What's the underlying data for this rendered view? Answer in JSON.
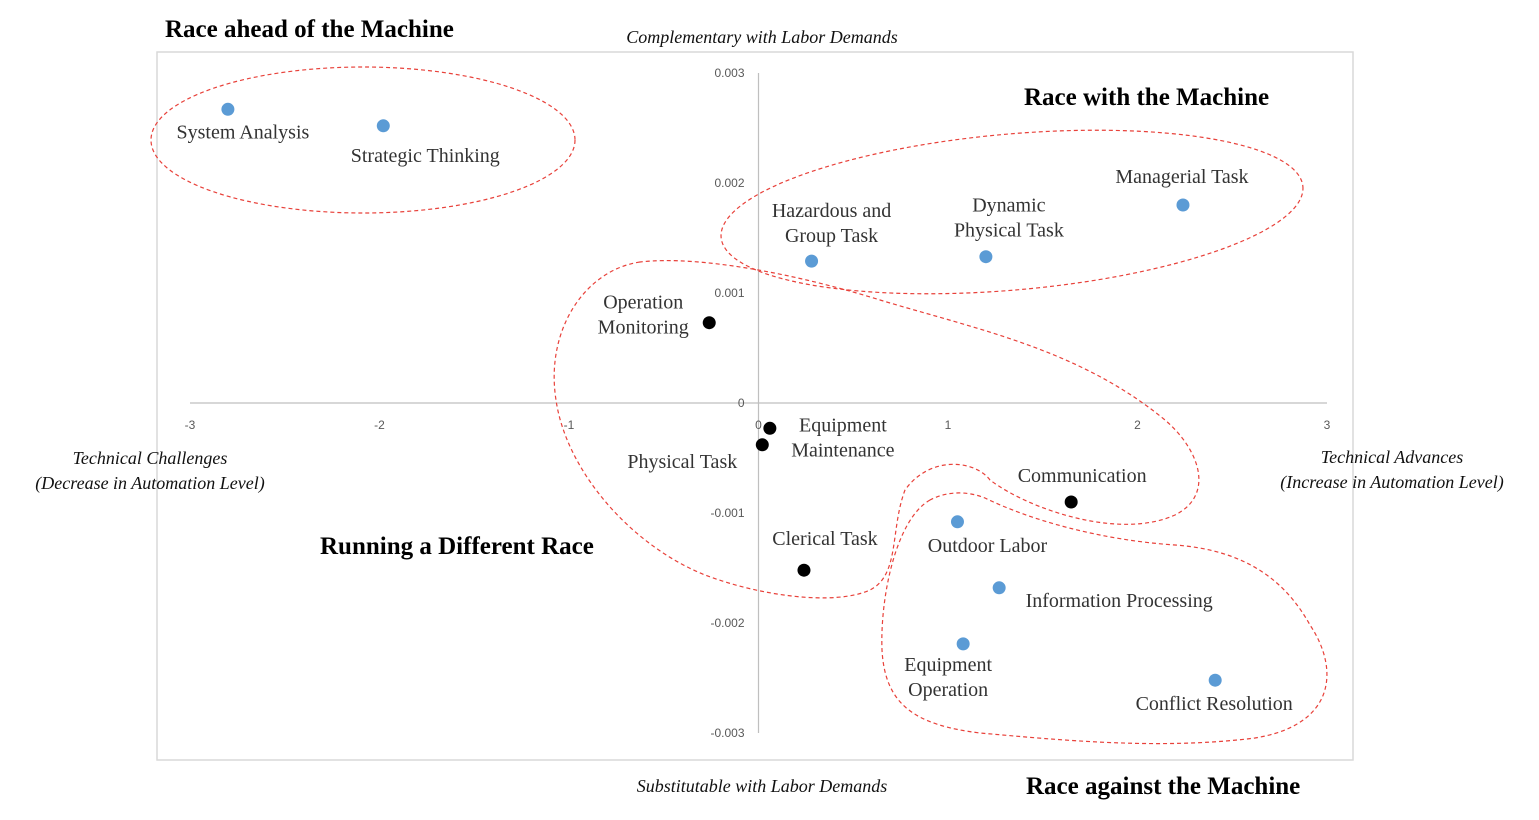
{
  "chart_data": {
    "type": "scatter",
    "xlim": [
      -3,
      3
    ],
    "ylim": [
      -0.003,
      0.003
    ],
    "x_ticks": [
      "-3",
      "-2",
      "-1",
      "0",
      "1",
      "2",
      "3"
    ],
    "y_ticks": [
      "0.003",
      "0.002",
      "0.001",
      "0",
      "-0.001",
      "-0.002",
      "-0.003"
    ],
    "grid": false,
    "axis_captions": {
      "top": "Complementary with Labor Demands",
      "bottom": "Substitutable with Labor Demands",
      "left": [
        "Technical Challenges",
        "(Decrease in Automation Level)"
      ],
      "right": [
        "Technical Advances",
        "(Increase in Automation Level)"
      ]
    },
    "quadrant_titles": {
      "top_left": "Race ahead of the Machine",
      "top_right": "Race with the Machine",
      "middle_left": "Running a Different Race",
      "bottom_right": "Race against the Machine"
    },
    "colors": {
      "blue": "#5b9bd5",
      "black": "#000000",
      "ellipse": "#e8413a"
    },
    "points": [
      {
        "label": [
          "System Analysis"
        ],
        "x": -2.8,
        "y": 0.00267,
        "color": "blue"
      },
      {
        "label": [
          "Strategic Thinking"
        ],
        "x": -1.98,
        "y": 0.00252,
        "color": "blue"
      },
      {
        "label": [
          "Managerial Task"
        ],
        "x": 2.24,
        "y": 0.0018,
        "color": "blue"
      },
      {
        "label": [
          "Dynamic",
          "Physical Task"
        ],
        "x": 1.2,
        "y": 0.00133,
        "color": "blue"
      },
      {
        "label": [
          "Hazardous and",
          "Group Task"
        ],
        "x": 0.28,
        "y": 0.00129,
        "color": "blue"
      },
      {
        "label": [
          "Operation",
          "Monitoring"
        ],
        "x": -0.26,
        "y": 0.00073,
        "color": "black"
      },
      {
        "label": [
          "Equipment",
          "Maintenance"
        ],
        "x": 0.06,
        "y": -0.00023,
        "color": "black"
      },
      {
        "label": [
          "Physical Task"
        ],
        "x": 0.02,
        "y": -0.00038,
        "color": "black"
      },
      {
        "label": [
          "Communication"
        ],
        "x": 1.65,
        "y": -0.0009,
        "color": "black"
      },
      {
        "label": [
          "Clerical Task"
        ],
        "x": 0.24,
        "y": -0.00152,
        "color": "black"
      },
      {
        "label": [
          "Outdoor Labor"
        ],
        "x": 1.05,
        "y": -0.00108,
        "color": "blue"
      },
      {
        "label": [
          "Information Processing"
        ],
        "x": 1.27,
        "y": -0.00168,
        "color": "blue"
      },
      {
        "label": [
          "Equipment",
          "Operation"
        ],
        "x": 1.08,
        "y": -0.00219,
        "color": "blue"
      },
      {
        "label": [
          "Conflict Resolution"
        ],
        "x": 2.41,
        "y": -0.00252,
        "color": "blue"
      }
    ]
  }
}
